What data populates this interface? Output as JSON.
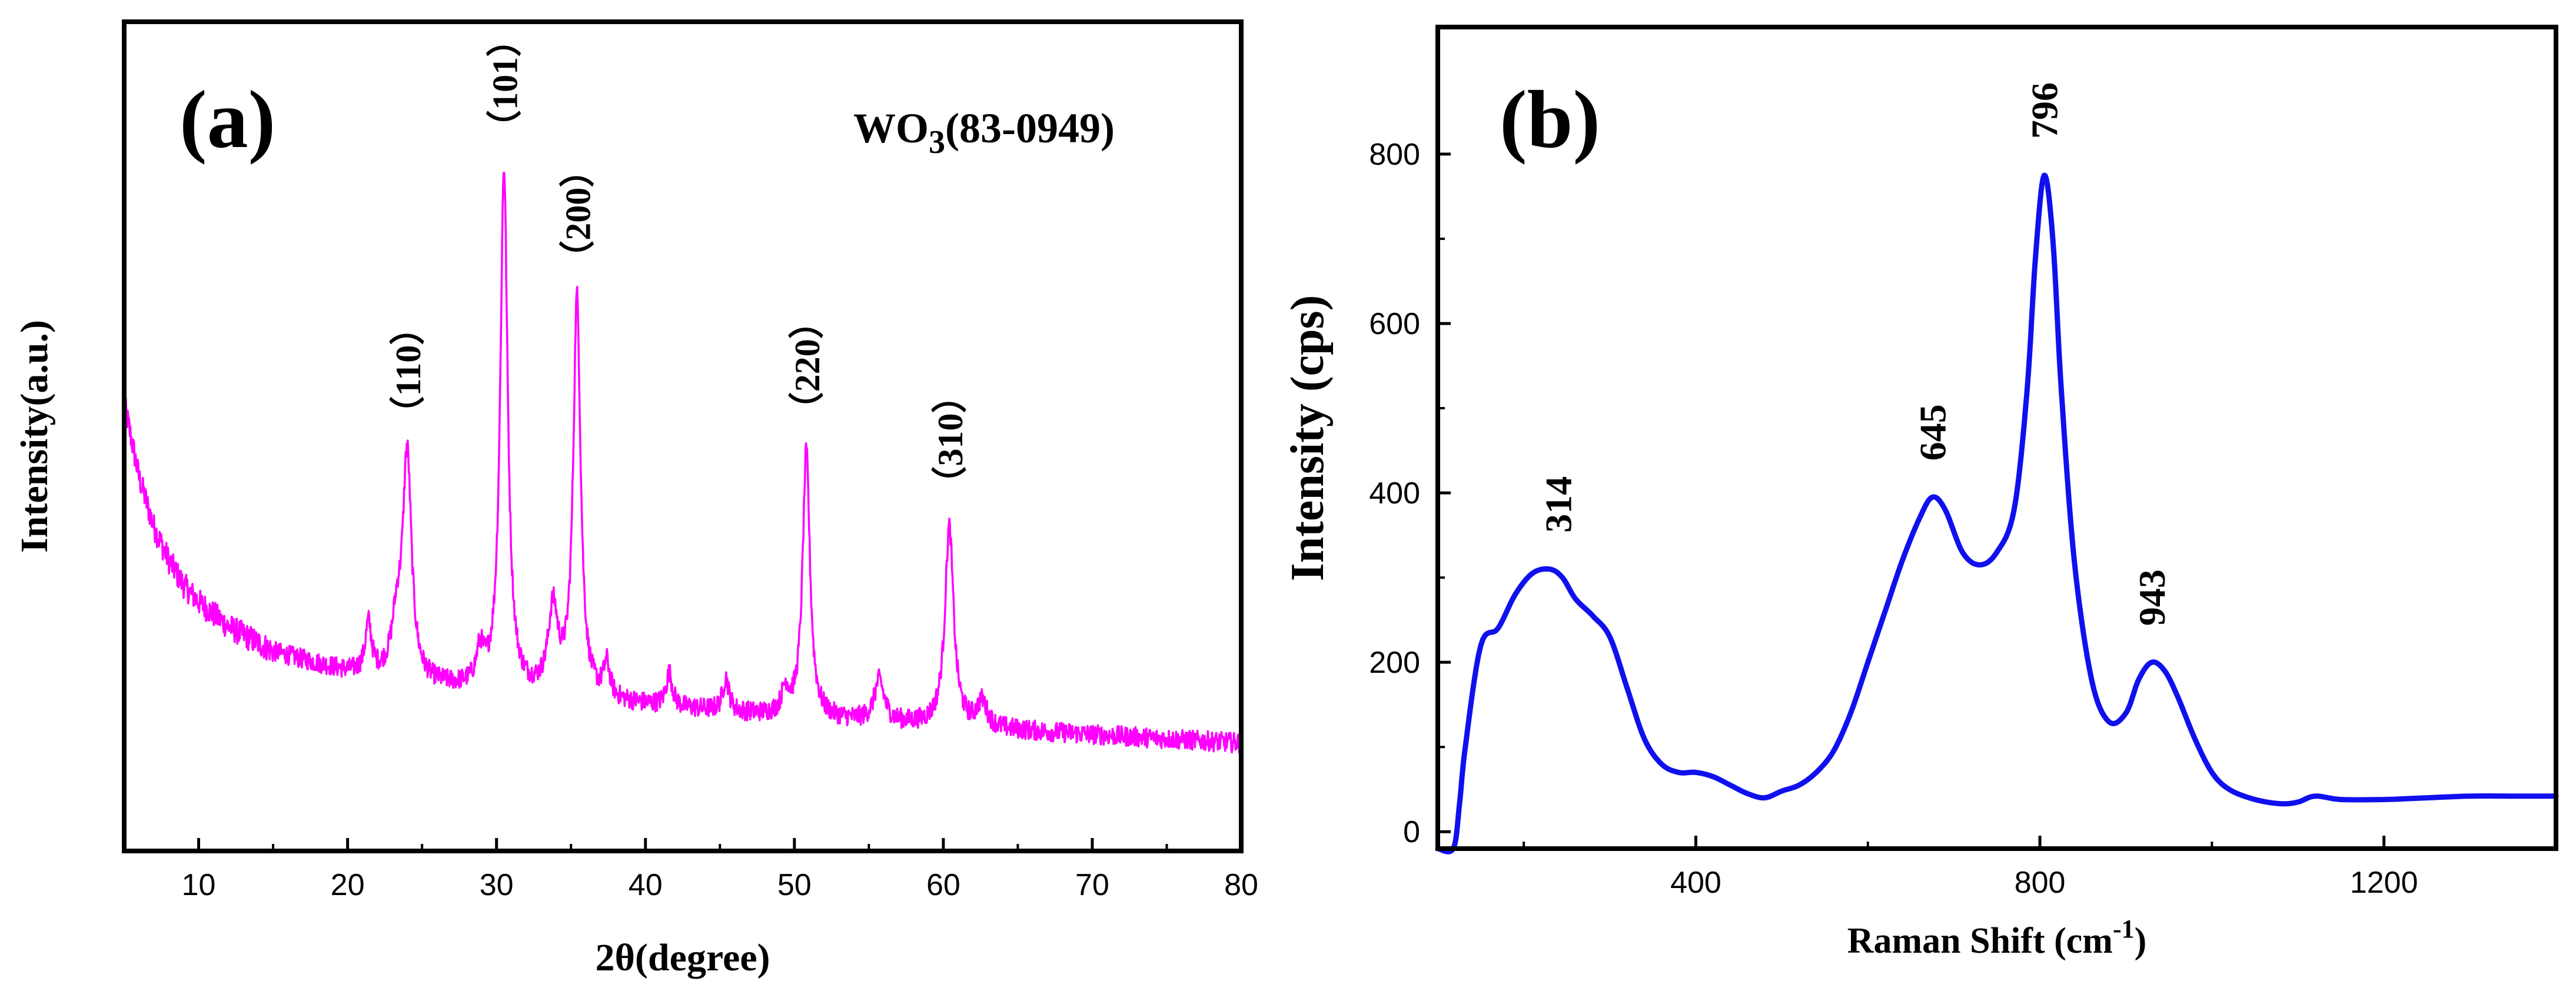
{
  "chart_data": [
    {
      "type": "line",
      "panel_label": "(a)",
      "title_main": "WO",
      "title_sub": "3",
      "title_rest": "(83-0949)",
      "xlabel": "2θ(degree)",
      "ylabel": "Intensity(a.u.)",
      "xlim": [
        5,
        80
      ],
      "ylim": [
        0,
        100
      ],
      "xticks": [
        10,
        20,
        30,
        40,
        50,
        60,
        70,
        80
      ],
      "color": "#ff00ff",
      "background": [
        [
          5,
          54
        ],
        [
          6,
          45
        ],
        [
          7,
          39
        ],
        [
          8,
          35
        ],
        [
          9,
          32
        ],
        [
          10,
          30
        ],
        [
          12,
          27
        ],
        [
          15,
          24
        ],
        [
          18,
          22.5
        ],
        [
          20,
          21.5
        ],
        [
          25,
          20
        ],
        [
          30,
          19
        ],
        [
          40,
          17.5
        ],
        [
          50,
          16
        ],
        [
          60,
          15
        ],
        [
          70,
          14
        ],
        [
          80,
          13
        ]
      ],
      "peaks": [
        {
          "label": "（110）",
          "x": 24.0,
          "height": 27,
          "width": 0.35
        },
        {
          "label": "（101）",
          "x": 30.5,
          "height": 63,
          "width": 0.3
        },
        {
          "label": "（200）",
          "x": 35.4,
          "height": 48,
          "width": 0.3
        },
        {
          "label": "（220）",
          "x": 50.8,
          "height": 32,
          "width": 0.3
        },
        {
          "label": "（310）",
          "x": 60.4,
          "height": 24,
          "width": 0.35
        }
      ],
      "minor_peaks": [
        {
          "x": 21.4,
          "height": 6,
          "width": 0.25
        },
        {
          "x": 23.3,
          "height": 6,
          "width": 0.4
        },
        {
          "x": 28.9,
          "height": 4,
          "width": 0.3
        },
        {
          "x": 33.8,
          "height": 10,
          "width": 0.4
        },
        {
          "x": 37.4,
          "height": 4,
          "width": 0.25
        },
        {
          "x": 41.6,
          "height": 4,
          "width": 0.25
        },
        {
          "x": 45.4,
          "height": 4,
          "width": 0.25
        },
        {
          "x": 49.4,
          "height": 3,
          "width": 0.3
        },
        {
          "x": 55.7,
          "height": 5,
          "width": 0.4
        },
        {
          "x": 62.6,
          "height": 3,
          "width": 0.4
        }
      ]
    },
    {
      "type": "line",
      "panel_label": "(b)",
      "xlabel_main": "Raman Shift (cm",
      "xlabel_sup": "-1",
      "xlabel_end": ")",
      "ylabel": "Intensity (cps)",
      "xlim": [
        100,
        1400
      ],
      "ylim": [
        -20,
        950
      ],
      "xticks": [
        400,
        800,
        1200
      ],
      "yticks": [
        0,
        200,
        400,
        600,
        800
      ],
      "color": "#1010ee",
      "peak_labels": [
        {
          "label": "314",
          "x": 240,
          "y": 310
        },
        {
          "label": "645",
          "x": 675,
          "y": 395
        },
        {
          "label": "796",
          "x": 805,
          "y": 775
        },
        {
          "label": "943",
          "x": 930,
          "y": 200
        }
      ],
      "x": [
        100,
        118,
        125,
        132,
        150,
        170,
        190,
        210,
        230,
        245,
        260,
        280,
        300,
        320,
        340,
        360,
        380,
        400,
        420,
        440,
        460,
        480,
        500,
        520,
        540,
        560,
        580,
        600,
        620,
        640,
        660,
        675,
        690,
        710,
        730,
        750,
        770,
        785,
        795,
        805,
        815,
        825,
        840,
        860,
        880,
        900,
        915,
        930,
        945,
        960,
        980,
        1000,
        1020,
        1050,
        1080,
        1100,
        1120,
        1150,
        1200,
        1250,
        1300,
        1350,
        1400
      ],
      "y": [
        -20,
        -20,
        30,
        100,
        220,
        240,
        280,
        305,
        310,
        300,
        275,
        255,
        230,
        170,
        110,
        80,
        70,
        70,
        65,
        55,
        45,
        40,
        48,
        55,
        70,
        95,
        140,
        200,
        260,
        320,
        370,
        395,
        380,
        330,
        315,
        330,
        380,
        520,
        680,
        775,
        700,
        520,
        320,
        180,
        130,
        140,
        180,
        200,
        190,
        160,
        110,
        70,
        50,
        38,
        33,
        35,
        42,
        38,
        38,
        40,
        42,
        42,
        42
      ]
    }
  ]
}
